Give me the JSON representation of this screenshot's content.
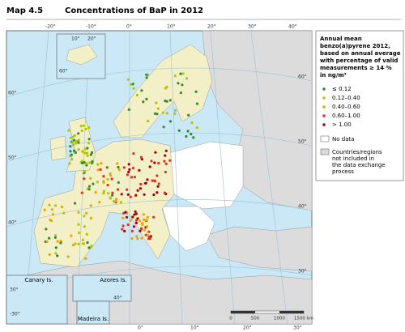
{
  "header": {
    "number": "Map 4.5",
    "title": "Concentrations of BaP in 2012"
  },
  "legend": {
    "title_lines": [
      "Annual mean",
      "benzo(a)pyrene 2012,",
      "based on annual average",
      "with percentage of valid",
      "measurements ≥ 14 %",
      "in ng/m³"
    ],
    "classes": [
      {
        "label": "≤ 0.12",
        "color": "#2e8b2e"
      },
      {
        "label": "0.12–0.40",
        "color": "#b5c400"
      },
      {
        "label": "0.40–0.60",
        "color": "#f0a000"
      },
      {
        "label": "0.60–1.00",
        "color": "#e03020"
      },
      {
        "label": "> 1.00",
        "color": "#a00010"
      }
    ],
    "no_data": "No data",
    "not_included_lines": [
      "Countries/regions",
      "not included in",
      "the data exchange",
      "process"
    ]
  },
  "graticule": {
    "top": [
      "-20°",
      "-10°",
      "0°",
      "10°",
      "20°",
      "30°",
      "40°"
    ],
    "left": [
      "60°",
      "50°",
      "40°"
    ],
    "right": [
      "60°",
      "50°",
      "40°",
      "30°"
    ],
    "bottom": [
      "0°",
      "10°",
      "20°",
      "30°"
    ]
  },
  "insets": {
    "iceland_labels": [
      "10°",
      "20°",
      "60°"
    ],
    "canary": "Canary Is.",
    "azores": "Azores Is.",
    "madeira": "Madeira Is.",
    "inset_ticks": [
      "-30°",
      "40°",
      "30°"
    ]
  },
  "scale_bar": [
    "0",
    "500",
    "1000",
    "1500 km"
  ]
}
